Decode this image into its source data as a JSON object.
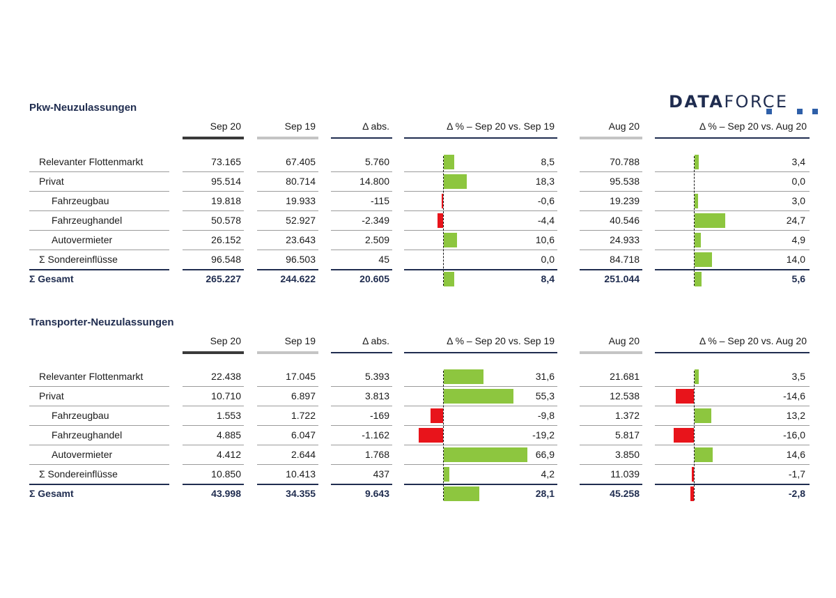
{
  "logo": {
    "text_bold": "DATA",
    "text_regular": "FORCE"
  },
  "columns": [
    "Sep 20",
    "Sep 19",
    "Δ abs.",
    "Δ % – Sep 20 vs. Sep 19",
    "Aug 20",
    "Δ % – Sep 20 vs. Aug 20"
  ],
  "tables": [
    {
      "title": "Pkw-Neuzulassungen",
      "rows": [
        {
          "label": "Relevanter Flottenmarkt",
          "indent": 0,
          "sep20": "73.165",
          "sep19": "67.405",
          "abs": "5.760",
          "pct1": "8,5",
          "aug20": "70.788",
          "pct2": "3,4"
        },
        {
          "label": "Privat",
          "indent": 0,
          "sep20": "95.514",
          "sep19": "80.714",
          "abs": "14.800",
          "pct1": "18,3",
          "aug20": "95.538",
          "pct2": "0,0"
        },
        {
          "label": "Fahrzeugbau",
          "indent": 1,
          "sep20": "19.818",
          "sep19": "19.933",
          "abs": "-115",
          "pct1": "-0,6",
          "aug20": "19.239",
          "pct2": "3,0"
        },
        {
          "label": "Fahrzeughandel",
          "indent": 1,
          "sep20": "50.578",
          "sep19": "52.927",
          "abs": "-2.349",
          "pct1": "-4,4",
          "aug20": "40.546",
          "pct2": "24,7"
        },
        {
          "label": "Autovermieter",
          "indent": 1,
          "sep20": "26.152",
          "sep19": "23.643",
          "abs": "2.509",
          "pct1": "10,6",
          "aug20": "24.933",
          "pct2": "4,9"
        },
        {
          "label": "Σ Sondereinflüsse",
          "indent": 0,
          "sep20": "96.548",
          "sep19": "96.503",
          "abs": "45",
          "pct1": "0,0",
          "aug20": "84.718",
          "pct2": "14,0"
        },
        {
          "label": "Σ Gesamt",
          "indent": -1,
          "total": true,
          "sep20": "265.227",
          "sep19": "244.622",
          "abs": "20.605",
          "pct1": "8,4",
          "aug20": "251.044",
          "pct2": "5,6"
        }
      ]
    },
    {
      "title": "Transporter-Neuzulassungen",
      "rows": [
        {
          "label": "Relevanter Flottenmarkt",
          "indent": 0,
          "sep20": "22.438",
          "sep19": "17.045",
          "abs": "5.393",
          "pct1": "31,6",
          "aug20": "21.681",
          "pct2": "3,5"
        },
        {
          "label": "Privat",
          "indent": 0,
          "sep20": "10.710",
          "sep19": "6.897",
          "abs": "3.813",
          "pct1": "55,3",
          "aug20": "12.538",
          "pct2": "-14,6"
        },
        {
          "label": "Fahrzeugbau",
          "indent": 1,
          "sep20": "1.553",
          "sep19": "1.722",
          "abs": "-169",
          "pct1": "-9,8",
          "aug20": "1.372",
          "pct2": "13,2"
        },
        {
          "label": "Fahrzeughandel",
          "indent": 1,
          "sep20": "4.885",
          "sep19": "6.047",
          "abs": "-1.162",
          "pct1": "-19,2",
          "aug20": "5.817",
          "pct2": "-16,0"
        },
        {
          "label": "Autovermieter",
          "indent": 1,
          "sep20": "4.412",
          "sep19": "2.644",
          "abs": "1.768",
          "pct1": "66,9",
          "aug20": "3.850",
          "pct2": "14,6"
        },
        {
          "label": "Σ Sondereinflüsse",
          "indent": 0,
          "sep20": "10.850",
          "sep19": "10.413",
          "abs": "437",
          "pct1": "4,2",
          "aug20": "11.039",
          "pct2": "-1,7"
        },
        {
          "label": "Σ Gesamt",
          "indent": -1,
          "total": true,
          "sep20": "43.998",
          "sep19": "34.355",
          "abs": "9.643",
          "pct1": "28,1",
          "aug20": "45.258",
          "pct2": "-2,8"
        }
      ]
    }
  ],
  "chart_data": [
    {
      "type": "bar",
      "title": "Pkw-Neuzulassungen",
      "categories": [
        "Relevanter Flottenmarkt",
        "Privat",
        "Fahrzeugbau",
        "Fahrzeughandel",
        "Autovermieter",
        "Σ Sondereinflüsse",
        "Σ Gesamt"
      ],
      "series": [
        {
          "name": "Δ % – Sep 20 vs. Sep 19",
          "values": [
            8.5,
            18.3,
            -0.6,
            -4.4,
            10.6,
            0.0,
            8.4
          ]
        },
        {
          "name": "Δ % – Sep 20 vs. Aug 20",
          "values": [
            3.4,
            0.0,
            3.0,
            24.7,
            4.9,
            14.0,
            5.6
          ]
        }
      ]
    },
    {
      "type": "bar",
      "title": "Transporter-Neuzulassungen",
      "categories": [
        "Relevanter Flottenmarkt",
        "Privat",
        "Fahrzeugbau",
        "Fahrzeughandel",
        "Autovermieter",
        "Σ Sondereinflüsse",
        "Σ Gesamt"
      ],
      "series": [
        {
          "name": "Δ % – Sep 20 vs. Sep 19",
          "values": [
            31.6,
            55.3,
            -9.8,
            -19.2,
            66.9,
            4.2,
            28.1
          ]
        },
        {
          "name": "Δ % – Sep 20 vs. Aug 20",
          "values": [
            3.5,
            -14.6,
            13.2,
            -16.0,
            14.6,
            -1.7,
            -2.8
          ]
        }
      ]
    }
  ],
  "colors": {
    "positive": "#8dc63f",
    "negative": "#e8141b",
    "heading": "#1f2c4f"
  }
}
